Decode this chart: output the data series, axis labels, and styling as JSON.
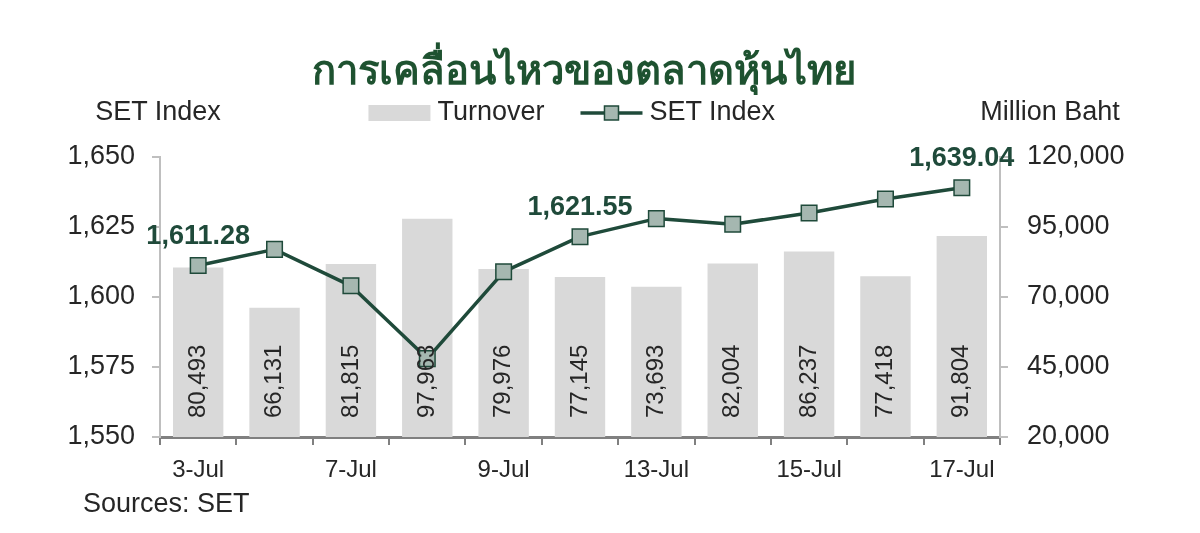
{
  "chart_data": {
    "type": "bar",
    "title": "การเคลื่อนไหวของตลาดหุ้นไทย",
    "ylabel": "SET Index",
    "y2label": "Million Baht",
    "categories": [
      "3-Jul",
      null,
      "7-Jul",
      null,
      "9-Jul",
      null,
      "13-Jul",
      null,
      "15-Jul",
      null,
      "17-Jul"
    ],
    "series": [
      {
        "name": "Turnover",
        "axis": "y2",
        "color": "#d9d9d9",
        "values": [
          80493,
          66131,
          81815,
          97963,
          79976,
          77145,
          73693,
          82004,
          86237,
          77418,
          91804
        ],
        "value_labels": [
          "80,493",
          "66,131",
          "81,815",
          "97,963",
          "79,976",
          "77,145",
          "73,693",
          "82,004",
          "86,237",
          "77,418",
          "91,804"
        ]
      },
      {
        "name": "SET Index",
        "type": "line",
        "axis": "y",
        "color": "#1f4a3a",
        "values": [
          1611.28,
          1617,
          1604,
          1578,
          1609,
          1621.55,
          1628,
          1626,
          1630,
          1635,
          1639.04
        ],
        "value_labels": [
          "1,611.28",
          null,
          null,
          null,
          null,
          "1,621.55",
          null,
          null,
          null,
          null,
          "1,639.04"
        ]
      }
    ],
    "ylim": [
      1550,
      1650
    ],
    "yticks": [
      {
        "value": 1550,
        "label": "1,550"
      },
      {
        "value": 1575,
        "label": "1,575"
      },
      {
        "value": 1600,
        "label": "1,600"
      },
      {
        "value": 1625,
        "label": "1,625"
      },
      {
        "value": 1650,
        "label": "1,650"
      }
    ],
    "y2lim": [
      20000,
      120000
    ],
    "y2ticks": [
      {
        "value": 20000,
        "label": "20,000"
      },
      {
        "value": 45000,
        "label": "45,000"
      },
      {
        "value": 70000,
        "label": "70,000"
      },
      {
        "value": 95000,
        "label": "95,000"
      },
      {
        "value": 120000,
        "label": "120,000"
      }
    ],
    "legend": "top",
    "marker": "square",
    "line_style": "solid",
    "annotations": [
      "Sources: SET"
    ]
  }
}
